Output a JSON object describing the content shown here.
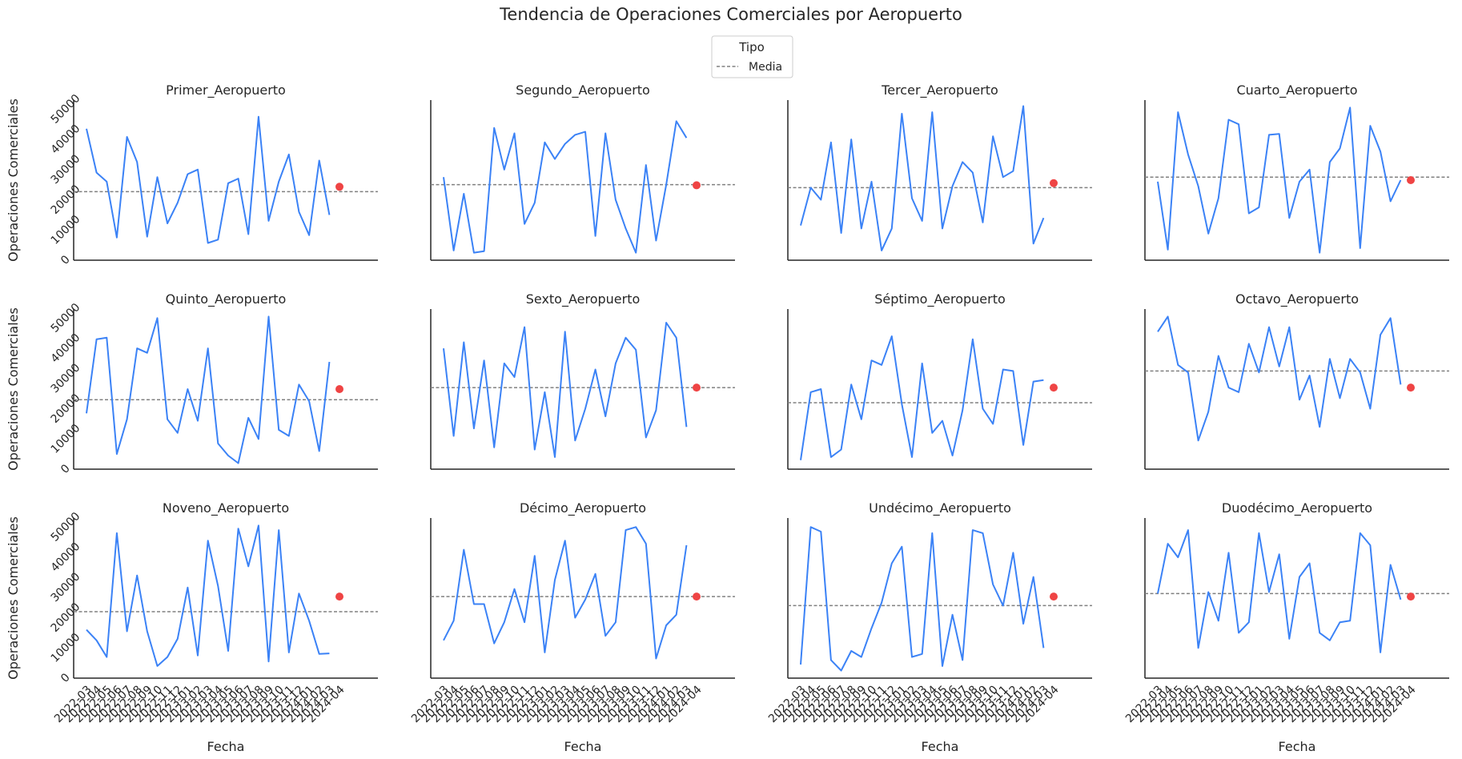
{
  "title": "Tendencia de Operaciones Comerciales por Aeropuerto",
  "legend": {
    "title": "Tipo",
    "items": [
      {
        "label": "Media",
        "style": "dashed",
        "color": "#808080"
      }
    ]
  },
  "chart_data": {
    "type": "line",
    "layout": {
      "rows": 3,
      "cols": 4,
      "sharex": true,
      "sharey": true
    },
    "xlabel": "Fecha",
    "ylabel": "Operaciones Comerciales",
    "ylim": [
      0,
      53000
    ],
    "yticks": [
      0,
      10000,
      20000,
      30000,
      40000,
      50000
    ],
    "x": [
      "2022-03",
      "2022-04",
      "2022-05",
      "2022-06",
      "2022-07",
      "2022-08",
      "2022-09",
      "2022-10",
      "2022-11",
      "2022-12",
      "2023-01",
      "2023-02",
      "2023-03",
      "2023-04",
      "2023-05",
      "2023-06",
      "2023-07",
      "2023-08",
      "2023-09",
      "2023-10",
      "2023-11",
      "2023-12",
      "2024-01",
      "2024-02",
      "2024-03",
      "2024-04"
    ],
    "line_color": "#3b82f6",
    "mean_color": "#808080",
    "point_color": "#ef4444",
    "subplots": [
      {
        "name": "Primer_Aeropuerto",
        "mean": 22700,
        "point": {
          "x": "2024-04",
          "y": 24300
        },
        "values": [
          43500,
          29000,
          26000,
          7500,
          40800,
          32500,
          7800,
          27500,
          12200,
          19000,
          28500,
          30000,
          5700,
          6800,
          25500,
          27000,
          8600,
          47500,
          13000,
          26000,
          35000,
          16000,
          8300,
          33000,
          15000
        ]
      },
      {
        "name": "Segundo_Aeropuerto",
        "mean": 25000,
        "point": {
          "x": "2024-04",
          "y": 24800
        },
        "values": [
          27500,
          3200,
          22000,
          2500,
          3000,
          43800,
          30000,
          42000,
          12000,
          19000,
          39000,
          33500,
          38500,
          41500,
          42500,
          8000,
          42000,
          20000,
          10500,
          2500,
          31500,
          6500,
          25000,
          46000,
          40500
        ]
      },
      {
        "name": "Tercer_Aeropuerto",
        "mean": 24000,
        "point": {
          "x": "2024-04",
          "y": 25500
        },
        "values": [
          11500,
          24000,
          20000,
          39000,
          9000,
          40000,
          10500,
          26000,
          3200,
          10500,
          48500,
          20500,
          13000,
          49000,
          10500,
          24500,
          32500,
          29000,
          12500,
          41000,
          27500,
          29500,
          51000,
          5500,
          14000
        ]
      },
      {
        "name": "Cuarto_Aeropuerto",
        "mean": 27500,
        "point": {
          "x": "2024-04",
          "y": 26500
        },
        "values": [
          26000,
          3500,
          49000,
          35000,
          24500,
          8800,
          20500,
          46500,
          45000,
          15500,
          17500,
          41500,
          41800,
          14000,
          26000,
          30000,
          2500,
          32500,
          37000,
          50500,
          4000,
          44500,
          36000,
          19500,
          26500
        ]
      },
      {
        "name": "Quinto_Aeropuerto",
        "mean": 23000,
        "point": {
          "x": "2024-04",
          "y": 26500
        },
        "values": [
          18500,
          43000,
          43500,
          5000,
          16500,
          40000,
          38500,
          50000,
          16500,
          12000,
          26500,
          16000,
          40000,
          8500,
          4500,
          2000,
          17000,
          10000,
          50500,
          13000,
          11000,
          28000,
          22500,
          6000,
          35500
        ]
      },
      {
        "name": "Sexto_Aeropuerto",
        "mean": 27000,
        "point": {
          "x": "2024-04",
          "y": 27000
        },
        "values": [
          40000,
          11000,
          42000,
          13500,
          36000,
          7200,
          35000,
          30500,
          47000,
          6500,
          25500,
          4000,
          45500,
          9500,
          20000,
          33000,
          17500,
          35000,
          43500,
          39500,
          10500,
          19500,
          48500,
          43500,
          14000
        ]
      },
      {
        "name": "Séptimo_Aeropuerto",
        "mean": 22000,
        "point": {
          "x": "2024-04",
          "y": 27000
        },
        "values": [
          3000,
          25500,
          26500,
          4000,
          6500,
          28000,
          16500,
          36000,
          34500,
          44000,
          21500,
          4000,
          35000,
          12000,
          16000,
          4500,
          19500,
          43000,
          20000,
          15000,
          33000,
          32500,
          8000,
          29000,
          29500
        ]
      },
      {
        "name": "Octavo_Aeropuerto",
        "mean": 32500,
        "point": {
          "x": "2024-04",
          "y": 27000
        },
        "values": [
          45500,
          50500,
          34500,
          32000,
          9500,
          19000,
          37500,
          27000,
          25500,
          41500,
          32000,
          47000,
          34000,
          47000,
          23000,
          31000,
          14000,
          36500,
          23500,
          36500,
          32000,
          20000,
          44500,
          50000,
          28000
        ]
      },
      {
        "name": "Noveno_Aeropuerto",
        "mean": 22000,
        "point": {
          "x": "2024-04",
          "y": 27000
        },
        "values": [
          16000,
          12500,
          7000,
          48000,
          15500,
          34000,
          15500,
          4000,
          7000,
          13000,
          30000,
          7500,
          45500,
          30500,
          9000,
          49500,
          37000,
          50500,
          5500,
          49000,
          8500,
          28000,
          19000,
          8000,
          8200
        ]
      },
      {
        "name": "Décimo_Aeropuerto",
        "mean": 27000,
        "point": {
          "x": "2024-04",
          "y": 27000
        },
        "values": [
          12500,
          19000,
          42500,
          24500,
          24500,
          11500,
          18500,
          29500,
          18500,
          40500,
          8500,
          32500,
          45500,
          20000,
          26000,
          34500,
          14000,
          18500,
          49000,
          50000,
          44500,
          6500,
          17500,
          21000,
          44000
        ]
      },
      {
        "name": "Undécimo_Aeropuerto",
        "mean": 24000,
        "point": {
          "x": "2024-04",
          "y": 27000
        },
        "values": [
          4500,
          50000,
          48500,
          6000,
          2500,
          9000,
          7000,
          16500,
          25000,
          38000,
          43500,
          7000,
          8000,
          48000,
          4000,
          21000,
          6000,
          49000,
          48000,
          31000,
          24000,
          41500,
          18000,
          33500,
          10000
        ]
      },
      {
        "name": "Duodécimo_Aeropuerto",
        "mean": 28000,
        "point": {
          "x": "2024-04",
          "y": 27000
        },
        "values": [
          28000,
          44500,
          40000,
          49000,
          10000,
          28500,
          19000,
          41500,
          15000,
          18500,
          48000,
          28500,
          41000,
          13000,
          33500,
          38000,
          15000,
          12500,
          18500,
          19000,
          48000,
          44000,
          8500,
          37500,
          26000
        ]
      }
    ]
  }
}
